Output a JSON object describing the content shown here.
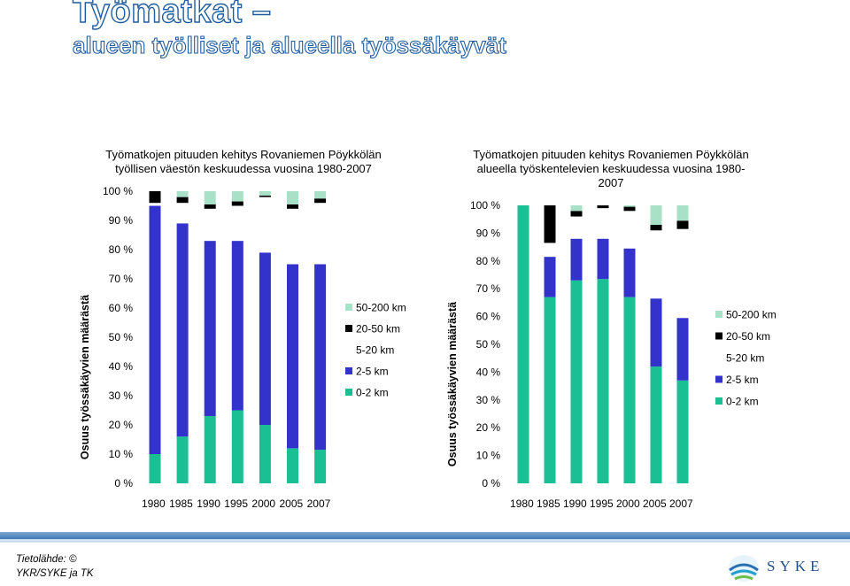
{
  "title": {
    "line1": "Työmatkat –",
    "line2": "alueen työlliset ja alueella työssäkäyvät"
  },
  "source": "Tietolähde: © YKR/SYKE ja TK",
  "logo_text": "SYKE",
  "colors": {
    "0-2 km": "#1abf94",
    "2-5 km": "#3333cc",
    "5-20 km": "#ffffff",
    "20-50 km": "#000000",
    "50-200 km": "#a8e0c8"
  },
  "chart_data": [
    {
      "type": "bar",
      "stacked": true,
      "title": "Työmatkojen pituuden kehitys Rovaniemen Pöykkölän työllisen väestön keskuudessa vuosina 1980-2007",
      "ylabel": "Osuus työssäkäyvien määrästä",
      "xlabel": "",
      "ylim": [
        0,
        100
      ],
      "yticks": [
        "0 %",
        "10 %",
        "20 %",
        "30 %",
        "40 %",
        "50 %",
        "60 %",
        "70 %",
        "80 %",
        "90 %",
        "100 %"
      ],
      "categories": [
        "1980",
        "1985",
        "1990",
        "1995",
        "2000",
        "2005",
        "2007"
      ],
      "legend": "right",
      "series": [
        {
          "name": "0-2 km",
          "values": [
            10,
            16,
            23,
            25,
            20,
            12,
            11.5
          ]
        },
        {
          "name": "2-5 km",
          "values": [
            85,
            73,
            60,
            58,
            59,
            63,
            63.5
          ]
        },
        {
          "name": "5-20 km",
          "values": [
            1,
            7,
            11,
            12,
            19,
            19,
            21
          ]
        },
        {
          "name": "20-50 km",
          "values": [
            4,
            2,
            1.5,
            1.5,
            0.5,
            1.5,
            1.5
          ]
        },
        {
          "name": "50-200 km",
          "values": [
            0,
            2,
            4.5,
            3.5,
            1.5,
            4.5,
            2.5
          ]
        }
      ]
    },
    {
      "type": "bar",
      "stacked": true,
      "title": "Työmatkojen pituuden kehitys Rovaniemen Pöykkölän alueella työskentelevien keskuudessa vuosina 1980-2007",
      "ylabel": "Osuus työssäkäyvien määrästä",
      "xlabel": "",
      "ylim": [
        0,
        100
      ],
      "yticks": [
        "0 %",
        "10 %",
        "20 %",
        "30 %",
        "40 %",
        "50 %",
        "60 %",
        "70 %",
        "80 %",
        "90 %",
        "100 %"
      ],
      "categories": [
        "1980",
        "1985",
        "1990",
        "1995",
        "2000",
        "2005",
        "2007"
      ],
      "legend": "right",
      "series": [
        {
          "name": "0-2 km",
          "values": [
            100,
            67,
            73,
            73.5,
            67,
            42,
            37
          ]
        },
        {
          "name": "2-5 km",
          "values": [
            0,
            14.5,
            15,
            14.5,
            17.5,
            24.5,
            22.5
          ]
        },
        {
          "name": "5-20 km",
          "values": [
            0,
            5,
            8,
            11,
            13.5,
            24.5,
            32
          ]
        },
        {
          "name": "20-50 km",
          "values": [
            0,
            13.5,
            2,
            1,
            1.5,
            2,
            3
          ]
        },
        {
          "name": "50-200 km",
          "values": [
            0,
            0,
            2,
            0,
            0.5,
            7,
            5.5
          ]
        }
      ]
    }
  ]
}
